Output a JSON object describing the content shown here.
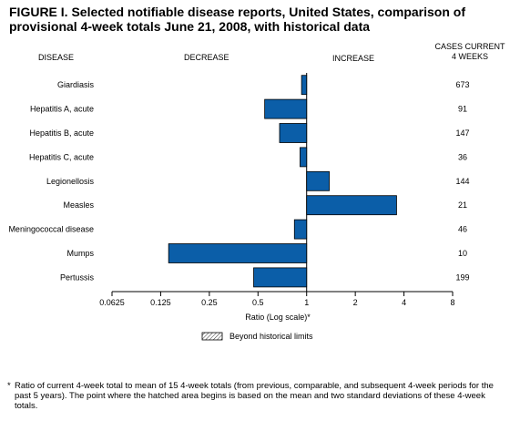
{
  "chart_data": {
    "type": "bar",
    "orientation": "horizontal",
    "title": "FIGURE I. Selected notifiable disease reports, United States, comparison of provisional 4-week totals June 21, 2008, with historical data",
    "xlabel": "Ratio (Log scale)*",
    "x_scale": "log2",
    "xlim": [
      0.0625,
      8
    ],
    "x_ticks": [
      0.0625,
      0.125,
      0.25,
      0.5,
      1,
      2,
      4,
      8
    ],
    "x_tick_labels": [
      "0.0625",
      "0.125",
      "0.25",
      "0.5",
      "1",
      "2",
      "4",
      "8"
    ],
    "baseline": 1,
    "column_headers": {
      "disease": "DISEASE",
      "decrease": "DECREASE",
      "increase": "INCREASE",
      "cases_line1": "CASES CURRENT",
      "cases_line2": "4 WEEKS"
    },
    "categories": [
      "Giardiasis",
      "Hepatitis A, acute",
      "Hepatitis B, acute",
      "Hepatitis C, acute",
      "Legionellosis",
      "Measles",
      "Meningococcal disease",
      "Mumps",
      "Pertussis"
    ],
    "values": [
      0.93,
      0.55,
      0.68,
      0.91,
      1.38,
      3.6,
      0.84,
      0.14,
      0.47
    ],
    "cases_current_4_weeks": [
      "673",
      "91",
      "147",
      "36",
      "144",
      "21",
      "46",
      "10",
      "199"
    ],
    "bar_color": "#0b5ea8",
    "legend": {
      "label": "Beyond historical limits",
      "pattern": "hatched",
      "position": "bottom-center"
    },
    "grid": false
  },
  "footnote": {
    "marker": "*",
    "text": "Ratio of current 4-week total to mean of 15 4-week totals (from previous, comparable, and subsequent 4-week periods for the past 5 years). The point where the hatched area begins is based on the mean and two standard deviations of these 4-week totals."
  }
}
